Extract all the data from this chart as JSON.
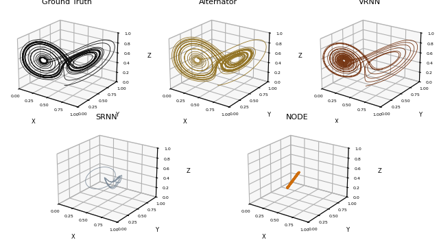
{
  "titles": [
    "Ground Truth",
    "Alternator",
    "VRNN",
    "SRNN",
    "NODE"
  ],
  "colors": [
    "#111111",
    "#8B6914",
    "#6B2500",
    "#708090",
    "#CC6600"
  ],
  "linewidths": [
    0.6,
    0.6,
    0.6,
    0.6,
    2.0
  ],
  "alphas": [
    1.0,
    0.9,
    0.9,
    0.85,
    0.95
  ],
  "figsize": [
    6.4,
    3.5
  ],
  "dpi": 100,
  "elev": 22,
  "azim": -55,
  "title_fontsize": 8,
  "tick_fontsize": 4.5,
  "label_fontsize": 6
}
